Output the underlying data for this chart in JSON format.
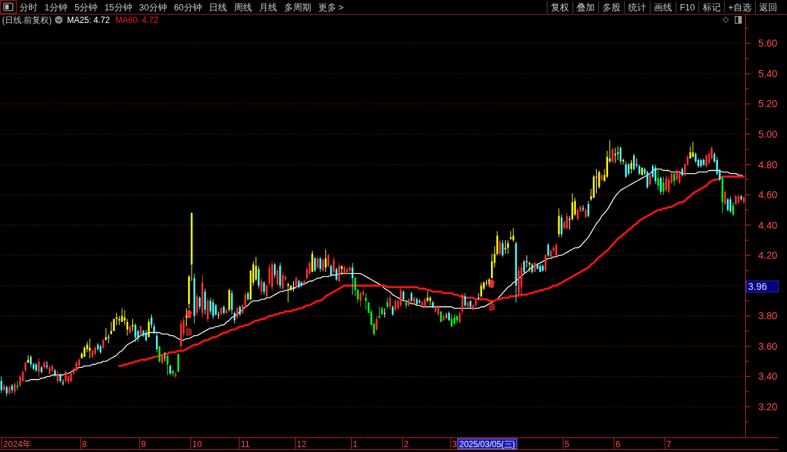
{
  "chart_data": {
    "type": "candlestick",
    "title": "(日线.前复权)",
    "legend": "top left",
    "grid": "y",
    "ylim": [
      3.0,
      5.79
    ],
    "yticks": [
      {
        "value": 3.1,
        "label": null
      },
      {
        "value": 3.2,
        "label": "3.20"
      },
      {
        "value": 3.3,
        "label": null
      },
      {
        "value": 3.4,
        "label": "3.40"
      },
      {
        "value": 3.5,
        "label": null
      },
      {
        "value": 3.6,
        "label": "3.60"
      },
      {
        "value": 3.7,
        "label": null
      },
      {
        "value": 3.8,
        "label": "3.80"
      },
      {
        "value": 3.9,
        "label": null
      },
      {
        "value": 4.0,
        "label": null
      },
      {
        "value": 4.1,
        "label": null
      },
      {
        "value": 4.2,
        "label": "4.20"
      },
      {
        "value": 4.3,
        "label": null
      },
      {
        "value": 4.4,
        "label": "4.40"
      },
      {
        "value": 4.5,
        "label": null
      },
      {
        "value": 4.6,
        "label": "4.60"
      },
      {
        "value": 4.7,
        "label": null
      },
      {
        "value": 4.8,
        "label": "4.80"
      },
      {
        "value": 4.9,
        "label": null
      },
      {
        "value": 5.0,
        "label": "5.00"
      },
      {
        "value": 5.1,
        "label": null
      },
      {
        "value": 5.2,
        "label": "5.20"
      },
      {
        "value": 5.3,
        "label": null
      },
      {
        "value": 5.4,
        "label": "5.40"
      },
      {
        "value": 5.5,
        "label": null
      },
      {
        "value": 5.6,
        "label": "5.60"
      },
      {
        "value": 5.7,
        "label": null
      }
    ],
    "categories": [
      null,
      null,
      null,
      null,
      null,
      null,
      "2024年",
      null,
      null,
      null,
      null,
      null,
      null,
      null,
      null,
      null,
      null,
      null,
      null,
      null,
      null,
      null,
      null,
      null,
      null,
      null,
      null,
      null,
      null,
      null,
      null,
      "8",
      null,
      null,
      null,
      null,
      null,
      null,
      null,
      null,
      null,
      null,
      null,
      null,
      null,
      null,
      null,
      null,
      null,
      null,
      null,
      null,
      null,
      "9",
      null,
      null,
      null,
      null,
      null,
      null,
      null,
      null,
      null,
      null,
      null,
      null,
      null,
      null,
      null,
      null,
      null,
      null,
      null,
      "10",
      null,
      null,
      null,
      null,
      null,
      null,
      null,
      null,
      null,
      null,
      null,
      null,
      null,
      null,
      null,
      null,
      null,
      "11",
      null,
      null,
      null,
      null,
      null,
      null,
      null,
      null,
      null,
      null,
      null,
      null,
      null,
      null,
      null,
      null,
      null,
      null,
      null,
      null,
      "12",
      null,
      null,
      null,
      null,
      null,
      null,
      null,
      null,
      null,
      null,
      null,
      null,
      null,
      null,
      null,
      null,
      null,
      null,
      null,
      "1",
      null,
      null,
      null,
      null,
      null,
      null,
      null,
      null,
      null,
      null,
      null,
      null,
      null,
      null,
      null,
      null,
      null,
      null,
      "2",
      null,
      null,
      null,
      null,
      null,
      null,
      null,
      null,
      null,
      null,
      null,
      null,
      null,
      null,
      null,
      null,
      null,
      "3",
      null,
      null,
      null,
      null,
      null,
      null,
      null,
      null,
      null,
      null,
      null,
      null,
      null,
      null,
      null,
      null,
      null,
      null,
      null,
      null,
      null,
      null,
      null,
      null,
      null,
      null,
      null,
      null,
      null,
      null,
      null,
      null,
      null,
      null,
      null,
      null,
      null,
      null,
      null,
      null,
      null,
      "5",
      null,
      null,
      null,
      null,
      null,
      null,
      null,
      null,
      null,
      null,
      null,
      null,
      null,
      null,
      null,
      null,
      null,
      null,
      "6",
      null,
      null,
      null,
      null,
      null,
      null,
      null,
      null,
      null,
      null,
      null,
      null,
      null,
      null,
      null,
      null,
      null,
      null,
      "7",
      null,
      null,
      null,
      null,
      null,
      null,
      null,
      null,
      null,
      null,
      null,
      null,
      null,
      null,
      null,
      null,
      null,
      null,
      null,
      null,
      null,
      null,
      null,
      null,
      null,
      null,
      null,
      null
    ],
    "ohlc": [
      [
        3.37,
        3.4,
        3.29,
        3.31
      ],
      [
        3.31,
        3.35,
        3.3,
        3.34
      ],
      [
        3.33,
        3.34,
        3.27,
        3.29
      ],
      [
        3.29,
        3.34,
        3.28,
        3.33
      ],
      [
        3.34,
        3.35,
        3.29,
        3.31
      ],
      [
        3.3,
        3.36,
        3.28,
        3.35
      ],
      [
        3.34,
        3.37,
        3.31,
        3.33
      ],
      [
        3.34,
        3.41,
        3.33,
        3.4
      ],
      [
        3.37,
        3.44,
        3.36,
        3.43
      ],
      [
        3.44,
        3.5,
        3.43,
        3.49
      ],
      [
        3.49,
        3.54,
        3.49,
        3.51
      ],
      [
        3.53,
        3.54,
        3.46,
        3.48
      ],
      [
        3.48,
        3.49,
        3.44,
        3.45
      ],
      [
        3.48,
        3.49,
        3.43,
        3.44
      ],
      [
        3.43,
        3.52,
        3.4,
        3.5
      ],
      [
        3.46,
        3.47,
        3.42,
        3.43
      ],
      [
        3.46,
        3.5,
        3.45,
        3.49
      ],
      [
        3.47,
        3.5,
        3.45,
        3.47
      ],
      [
        3.42,
        3.47,
        3.41,
        3.46
      ],
      [
        3.44,
        3.48,
        3.43,
        3.47
      ],
      [
        3.44,
        3.45,
        3.4,
        3.41
      ],
      [
        3.37,
        3.44,
        3.35,
        3.42
      ],
      [
        3.41,
        3.42,
        3.36,
        3.37
      ],
      [
        3.36,
        3.38,
        3.34,
        3.36
      ],
      [
        3.37,
        3.44,
        3.36,
        3.43
      ],
      [
        3.36,
        3.41,
        3.35,
        3.4
      ],
      [
        3.37,
        3.43,
        3.36,
        3.42
      ],
      [
        3.42,
        3.46,
        3.41,
        3.45
      ],
      [
        3.44,
        3.5,
        3.43,
        3.49
      ],
      [
        3.47,
        3.52,
        3.46,
        3.51
      ],
      [
        3.52,
        3.56,
        3.52,
        3.55
      ],
      [
        3.53,
        3.6,
        3.53,
        3.59
      ],
      [
        3.58,
        3.63,
        3.56,
        3.61
      ],
      [
        3.57,
        3.65,
        3.52,
        3.59
      ],
      [
        3.53,
        3.58,
        3.52,
        3.57
      ],
      [
        3.55,
        3.6,
        3.54,
        3.59
      ],
      [
        3.61,
        3.62,
        3.57,
        3.58
      ],
      [
        3.6,
        3.61,
        3.55,
        3.56
      ],
      [
        3.59,
        3.65,
        3.58,
        3.64
      ],
      [
        3.64,
        3.72,
        3.64,
        3.66
      ],
      [
        3.66,
        3.68,
        3.62,
        3.66
      ],
      [
        3.68,
        3.76,
        3.68,
        3.7
      ],
      [
        3.7,
        3.78,
        3.7,
        3.78
      ],
      [
        3.78,
        3.82,
        3.74,
        3.79
      ],
      [
        3.77,
        3.8,
        3.74,
        3.78
      ],
      [
        3.76,
        3.85,
        3.76,
        3.8
      ],
      [
        3.77,
        3.84,
        3.74,
        3.79
      ],
      [
        3.71,
        3.78,
        3.67,
        3.76
      ],
      [
        3.69,
        3.74,
        3.68,
        3.73
      ],
      [
        3.73,
        3.78,
        3.7,
        3.74
      ],
      [
        3.74,
        3.75,
        3.63,
        3.66
      ],
      [
        3.7,
        3.71,
        3.63,
        3.65
      ],
      [
        3.68,
        3.74,
        3.67,
        3.73
      ],
      [
        3.7,
        3.71,
        3.66,
        3.67
      ],
      [
        3.69,
        3.71,
        3.63,
        3.64
      ],
      [
        3.66,
        3.78,
        3.66,
        3.76
      ],
      [
        3.79,
        3.81,
        3.72,
        3.74
      ],
      [
        3.73,
        3.75,
        3.68,
        3.69
      ],
      [
        3.67,
        3.69,
        3.56,
        3.58
      ],
      [
        3.6,
        3.6,
        3.49,
        3.5
      ],
      [
        3.49,
        3.55,
        3.48,
        3.54
      ],
      [
        3.53,
        3.56,
        3.5,
        3.53
      ],
      [
        3.54,
        3.54,
        3.41,
        3.48
      ],
      [
        3.47,
        3.48,
        3.41,
        3.42
      ],
      [
        3.44,
        3.44,
        3.4,
        3.42
      ],
      [
        3.4,
        3.43,
        3.39,
        3.42
      ],
      [
        3.43,
        3.55,
        3.43,
        3.55
      ],
      [
        3.6,
        3.77,
        3.58,
        3.75
      ],
      [
        3.68,
        3.79,
        3.66,
        3.77
      ],
      [
        3.79,
        3.85,
        3.73,
        3.8
      ],
      [
        3.88,
        4.07,
        3.85,
        4.06
      ],
      [
        4.48,
        4.48,
        4.03,
        4.14
      ],
      [
        4.05,
        4.08,
        3.75,
        3.8
      ],
      [
        3.82,
        3.95,
        3.8,
        3.93
      ],
      [
        3.92,
        3.93,
        3.84,
        3.86
      ],
      [
        3.82,
        4.07,
        3.79,
        4.02
      ],
      [
        3.96,
        3.98,
        3.81,
        3.84
      ],
      [
        3.78,
        3.92,
        3.76,
        3.9
      ],
      [
        3.9,
        3.92,
        3.81,
        3.83
      ],
      [
        3.89,
        3.91,
        3.78,
        3.8
      ],
      [
        3.87,
        3.88,
        3.8,
        3.81
      ],
      [
        3.81,
        3.83,
        3.78,
        3.81
      ],
      [
        3.81,
        3.86,
        3.8,
        3.85
      ],
      [
        3.86,
        3.87,
        3.81,
        3.82
      ],
      [
        3.82,
        3.85,
        3.81,
        3.84
      ],
      [
        3.84,
        3.98,
        3.83,
        3.97
      ],
      [
        3.95,
        3.97,
        3.81,
        3.84
      ],
      [
        3.82,
        3.83,
        3.75,
        3.77
      ],
      [
        3.79,
        3.86,
        3.78,
        3.85
      ],
      [
        3.86,
        3.87,
        3.8,
        3.81
      ],
      [
        3.82,
        3.88,
        3.81,
        3.87
      ],
      [
        3.87,
        3.96,
        3.86,
        3.94
      ],
      [
        3.95,
        3.96,
        3.9,
        3.91
      ],
      [
        3.91,
        4.1,
        3.9,
        4.1
      ],
      [
        4.02,
        4.16,
        4.0,
        4.14
      ],
      [
        4.04,
        4.19,
        4.03,
        4.13
      ],
      [
        4.11,
        4.13,
        3.98,
        4.0
      ],
      [
        3.96,
        4.05,
        3.94,
        4.03
      ],
      [
        4.02,
        4.03,
        3.94,
        3.96
      ],
      [
        3.93,
        4.01,
        3.92,
        4.0
      ],
      [
        4.01,
        4.14,
        4.0,
        4.12
      ],
      [
        3.99,
        4.16,
        3.97,
        4.14
      ],
      [
        4.14,
        4.15,
        4.05,
        4.07
      ],
      [
        4.01,
        4.12,
        4.0,
        4.1
      ],
      [
        4.13,
        4.15,
        3.98,
        4.0
      ],
      [
        3.98,
        4.09,
        3.96,
        4.07
      ],
      [
        4.04,
        4.07,
        4.03,
        4.06
      ],
      [
        4.0,
        4.02,
        3.89,
        4.01
      ],
      [
        3.97,
        4.0,
        3.97,
        4.0
      ],
      [
        3.99,
        4.03,
        3.96,
        3.99
      ],
      [
        3.99,
        4.06,
        3.98,
        4.05
      ],
      [
        4.03,
        4.04,
        3.98,
        3.99
      ],
      [
        4.02,
        4.03,
        3.99,
        4.0
      ],
      [
        4.01,
        4.04,
        4.0,
        4.03
      ],
      [
        4.05,
        4.12,
        4.04,
        4.11
      ],
      [
        4.08,
        4.16,
        4.07,
        4.15
      ],
      [
        4.09,
        4.23,
        4.09,
        4.21
      ],
      [
        4.18,
        4.19,
        4.09,
        4.1
      ],
      [
        4.12,
        4.19,
        4.11,
        4.18
      ],
      [
        4.18,
        4.19,
        4.09,
        4.11
      ],
      [
        4.1,
        4.18,
        4.09,
        4.17
      ],
      [
        4.12,
        4.24,
        4.09,
        4.18
      ],
      [
        4.13,
        4.21,
        4.12,
        4.2
      ],
      [
        4.13,
        4.14,
        4.06,
        4.07
      ],
      [
        4.09,
        4.19,
        4.08,
        4.17
      ],
      [
        4.11,
        4.12,
        4.03,
        4.04
      ],
      [
        4.03,
        4.15,
        4.02,
        4.13
      ],
      [
        4.11,
        4.13,
        4.07,
        4.13
      ],
      [
        4.08,
        4.13,
        4.07,
        4.12
      ],
      [
        4.09,
        4.12,
        4.08,
        4.11
      ],
      [
        4.1,
        4.13,
        4.09,
        4.12
      ],
      [
        4.12,
        4.15,
        3.94,
        4.05
      ],
      [
        4.05,
        4.06,
        3.93,
        3.97
      ],
      [
        3.97,
        3.98,
        3.89,
        3.91
      ],
      [
        3.9,
        3.96,
        3.86,
        3.95
      ],
      [
        3.94,
        3.97,
        3.93,
        3.96
      ],
      [
        3.92,
        3.95,
        3.84,
        3.9
      ],
      [
        3.89,
        3.89,
        3.82,
        3.82
      ],
      [
        3.83,
        3.84,
        3.74,
        3.74
      ],
      [
        3.75,
        3.75,
        3.67,
        3.68
      ],
      [
        3.71,
        3.8,
        3.7,
        3.78
      ],
      [
        3.8,
        3.86,
        3.78,
        3.79
      ],
      [
        3.81,
        3.86,
        3.81,
        3.85
      ],
      [
        3.82,
        3.85,
        3.79,
        3.82
      ],
      [
        3.86,
        3.92,
        3.85,
        3.89
      ],
      [
        3.86,
        3.94,
        3.84,
        3.92
      ],
      [
        3.86,
        3.87,
        3.8,
        3.81
      ],
      [
        3.84,
        3.91,
        3.83,
        3.9
      ],
      [
        3.85,
        3.91,
        3.84,
        3.9
      ],
      [
        3.87,
        3.99,
        3.86,
        3.97
      ],
      [
        3.96,
        3.97,
        3.9,
        3.91
      ],
      [
        3.89,
        3.9,
        3.85,
        3.87
      ],
      [
        3.87,
        3.92,
        3.86,
        3.91
      ],
      [
        3.95,
        3.96,
        3.89,
        3.9
      ],
      [
        3.89,
        3.93,
        3.88,
        3.92
      ],
      [
        3.91,
        3.92,
        3.87,
        3.88
      ],
      [
        3.9,
        3.91,
        3.88,
        3.89
      ],
      [
        3.87,
        3.9,
        3.86,
        3.89
      ],
      [
        3.86,
        3.92,
        3.85,
        3.91
      ],
      [
        3.9,
        3.96,
        3.89,
        3.92
      ],
      [
        3.9,
        3.93,
        3.87,
        3.92
      ],
      [
        3.89,
        3.9,
        3.85,
        3.86
      ],
      [
        3.83,
        3.87,
        3.82,
        3.86
      ],
      [
        3.81,
        3.87,
        3.8,
        3.86
      ],
      [
        3.83,
        3.83,
        3.76,
        3.76
      ],
      [
        3.77,
        3.81,
        3.77,
        3.8
      ],
      [
        3.8,
        3.82,
        3.78,
        3.8
      ],
      [
        3.82,
        3.83,
        3.77,
        3.77
      ],
      [
        3.78,
        3.81,
        3.73,
        3.73
      ],
      [
        3.75,
        3.81,
        3.74,
        3.79
      ],
      [
        3.8,
        3.8,
        3.75,
        3.77
      ],
      [
        3.76,
        3.83,
        3.75,
        3.82
      ],
      [
        3.83,
        3.95,
        3.81,
        3.94
      ],
      [
        3.93,
        3.95,
        3.86,
        3.87
      ],
      [
        3.86,
        3.9,
        3.85,
        3.89
      ],
      [
        3.9,
        3.9,
        3.85,
        3.86
      ],
      [
        3.84,
        3.88,
        3.84,
        3.87
      ],
      [
        3.87,
        3.91,
        3.86,
        3.9
      ],
      [
        3.92,
        3.95,
        3.91,
        3.92
      ],
      [
        3.93,
        4.02,
        3.92,
        4.0
      ],
      [
        3.98,
        4.03,
        3.97,
        4.02
      ],
      [
        4.02,
        4.04,
        4.0,
        4.02
      ],
      [
        4.01,
        4.05,
        3.99,
        4.04
      ],
      [
        4.05,
        4.21,
        4.05,
        4.16
      ],
      [
        4.15,
        4.26,
        4.12,
        4.21
      ],
      [
        4.21,
        4.36,
        4.2,
        4.33
      ],
      [
        4.21,
        4.3,
        4.2,
        4.29
      ],
      [
        4.28,
        4.3,
        4.19,
        4.2
      ],
      [
        4.24,
        4.3,
        4.21,
        4.25
      ],
      [
        4.25,
        4.3,
        4.21,
        4.28
      ],
      [
        4.31,
        4.36,
        4.3,
        4.32
      ],
      [
        4.3,
        4.38,
        4.29,
        4.33
      ],
      [
        4.28,
        4.29,
        3.89,
        4.0
      ],
      [
        3.95,
        4.13,
        3.92,
        4.1
      ],
      [
        3.99,
        4.15,
        3.93,
        4.12
      ],
      [
        4.16,
        4.17,
        4.08,
        4.09
      ],
      [
        4.16,
        4.2,
        4.12,
        4.16
      ],
      [
        4.14,
        4.16,
        4.09,
        4.15
      ],
      [
        4.14,
        4.15,
        4.08,
        4.09
      ],
      [
        4.09,
        4.16,
        4.09,
        4.15
      ],
      [
        4.14,
        4.15,
        4.11,
        4.11
      ],
      [
        4.13,
        4.14,
        4.09,
        4.09
      ],
      [
        4.13,
        4.14,
        4.09,
        4.1
      ],
      [
        4.1,
        4.21,
        4.09,
        4.2
      ],
      [
        4.27,
        4.28,
        4.19,
        4.2
      ],
      [
        4.19,
        4.24,
        4.18,
        4.23
      ],
      [
        4.23,
        4.26,
        4.22,
        4.25
      ],
      [
        4.2,
        4.28,
        4.19,
        4.27
      ],
      [
        4.34,
        4.51,
        4.32,
        4.46
      ],
      [
        4.45,
        4.47,
        4.32,
        4.34
      ],
      [
        4.38,
        4.43,
        4.37,
        4.42
      ],
      [
        4.38,
        4.48,
        4.37,
        4.46
      ],
      [
        4.44,
        4.46,
        4.37,
        4.44
      ],
      [
        4.44,
        4.61,
        4.43,
        4.55
      ],
      [
        4.47,
        4.58,
        4.46,
        4.56
      ],
      [
        4.44,
        4.51,
        4.43,
        4.5
      ],
      [
        4.49,
        4.53,
        4.48,
        4.52
      ],
      [
        4.51,
        4.53,
        4.49,
        4.51
      ],
      [
        4.45,
        4.51,
        4.45,
        4.5
      ],
      [
        4.54,
        4.56,
        4.45,
        4.46
      ],
      [
        4.57,
        4.64,
        4.56,
        4.59
      ],
      [
        4.58,
        4.73,
        4.58,
        4.72
      ],
      [
        4.72,
        4.77,
        4.61,
        4.72
      ],
      [
        4.65,
        4.76,
        4.64,
        4.75
      ],
      [
        4.7,
        4.74,
        4.69,
        4.73
      ],
      [
        4.69,
        4.77,
        4.69,
        4.73
      ],
      [
        4.72,
        4.89,
        4.71,
        4.85
      ],
      [
        4.82,
        4.96,
        4.81,
        4.84
      ],
      [
        4.82,
        4.91,
        4.81,
        4.9
      ],
      [
        4.86,
        4.91,
        4.81,
        4.87
      ],
      [
        4.87,
        4.92,
        4.83,
        4.88
      ],
      [
        4.91,
        4.92,
        4.8,
        4.82
      ],
      [
        4.82,
        4.84,
        4.8,
        4.83
      ],
      [
        4.8,
        4.82,
        4.71,
        4.72
      ],
      [
        4.8,
        4.81,
        4.73,
        4.74
      ],
      [
        4.77,
        4.83,
        4.74,
        4.81
      ],
      [
        4.86,
        4.87,
        4.76,
        4.77
      ],
      [
        4.8,
        4.84,
        4.78,
        4.8
      ],
      [
        4.79,
        4.8,
        4.73,
        4.74
      ],
      [
        4.73,
        4.78,
        4.73,
        4.78
      ],
      [
        4.77,
        4.78,
        4.73,
        4.74
      ],
      [
        4.75,
        4.76,
        4.64,
        4.65
      ],
      [
        4.67,
        4.75,
        4.66,
        4.73
      ],
      [
        4.79,
        4.8,
        4.71,
        4.72
      ],
      [
        4.78,
        4.8,
        4.67,
        4.69
      ],
      [
        4.71,
        4.77,
        4.63,
        4.66
      ],
      [
        4.71,
        4.72,
        4.6,
        4.62
      ],
      [
        4.68,
        4.72,
        4.6,
        4.62
      ],
      [
        4.63,
        4.73,
        4.62,
        4.71
      ],
      [
        4.62,
        4.72,
        4.61,
        4.7
      ],
      [
        4.68,
        4.75,
        4.67,
        4.74
      ],
      [
        4.74,
        4.74,
        4.66,
        4.69
      ],
      [
        4.7,
        4.77,
        4.69,
        4.76
      ],
      [
        4.68,
        4.76,
        4.67,
        4.74
      ],
      [
        4.77,
        4.78,
        4.72,
        4.73
      ],
      [
        4.73,
        4.81,
        4.72,
        4.8
      ],
      [
        4.8,
        4.86,
        4.79,
        4.85
      ],
      [
        4.84,
        4.92,
        4.84,
        4.88
      ],
      [
        4.85,
        4.95,
        4.85,
        4.88
      ],
      [
        4.87,
        4.88,
        4.81,
        4.82
      ],
      [
        4.83,
        4.84,
        4.78,
        4.79
      ],
      [
        4.83,
        4.84,
        4.78,
        4.79
      ],
      [
        4.83,
        4.84,
        4.79,
        4.8
      ],
      [
        4.79,
        4.87,
        4.78,
        4.86
      ],
      [
        4.81,
        4.89,
        4.8,
        4.87
      ],
      [
        4.84,
        4.92,
        4.83,
        4.91
      ],
      [
        4.87,
        4.88,
        4.81,
        4.82
      ],
      [
        4.83,
        4.85,
        4.73,
        4.74
      ],
      [
        4.76,
        4.77,
        4.69,
        4.7
      ],
      [
        4.71,
        4.72,
        4.48,
        4.55
      ],
      [
        4.54,
        4.63,
        4.53,
        4.62
      ],
      [
        4.57,
        4.58,
        4.49,
        4.5
      ],
      [
        4.57,
        4.59,
        4.48,
        4.49
      ],
      [
        4.53,
        4.55,
        4.46,
        4.47
      ],
      [
        4.54,
        4.6,
        4.53,
        4.59
      ],
      [
        4.55,
        4.6,
        4.54,
        4.59
      ],
      [
        4.59,
        4.6,
        4.56,
        4.57
      ],
      [
        4.55,
        4.59,
        4.54,
        4.58
      ]
    ],
    "colors": [
      "#54fcfc",
      "#ff3232",
      "#54fcfc",
      "#ff3232",
      "#54fcfc",
      "#ff3232",
      "#00ff00",
      "#ff3232",
      "#ff3232",
      "#ff3232",
      "#ffff00",
      "#54fcfc",
      "#54fcfc",
      "#54fcfc",
      "#ff3232",
      "#54fcfc",
      "#ff3232",
      "#ffffff",
      "#ff3232",
      "#ff3232",
      "#54fcfc",
      "#ff3232",
      "#54fcfc",
      "#ffffff",
      "#ff3232",
      "#ff3232",
      "#ff3232",
      "#ff3232",
      "#ff3232",
      "#ff3232",
      "#ffff00",
      "#ffff00",
      "#ffff00",
      "#ffff00",
      "#ff3232",
      "#ff3232",
      "#54fcfc",
      "#54fcfc",
      "#ff3232",
      "#ffff00",
      "#ffffff",
      "#ffff00",
      "#ffff00",
      "#ffff00",
      "#ffff00",
      "#ffff00",
      "#ffff00",
      "#ffff00",
      "#ff3232",
      "#ffff00",
      "#54fcfc",
      "#54fcfc",
      "#ff3232",
      "#54fcfc",
      "#54fcfc",
      "#ffff00",
      "#54fcfc",
      "#54fcfc",
      "#54fcfc",
      "#00ff00",
      "#ff3232",
      "#ffffff",
      "#00ff00",
      "#54fcfc",
      "#00ff00",
      "#ff3232",
      "#00ff00",
      "#ff3232",
      "#ff3232",
      "#ffff00",
      "#ffff00",
      "#ffff00",
      "#54fcfc",
      "#ff3232",
      "#54fcfc",
      "#ff3232",
      "#54fcfc",
      "#ff3232",
      "#54fcfc",
      "#54fcfc",
      "#54fcfc",
      "#ffffff",
      "#ff3232",
      "#54fcfc",
      "#ff3232",
      "#ffff00",
      "#54fcfc",
      "#54fcfc",
      "#ff3232",
      "#54fcfc",
      "#ff3232",
      "#ff3232",
      "#54fcfc",
      "#ffff00",
      "#ffff00",
      "#ffff00",
      "#54fcfc",
      "#ff3232",
      "#54fcfc",
      "#ff3232",
      "#ff3232",
      "#ff3232",
      "#54fcfc",
      "#ff3232",
      "#54fcfc",
      "#ff3232",
      "#ff3232",
      "#ffff00",
      "#ffff00",
      "#ffffff",
      "#ff3232",
      "#54fcfc",
      "#54fcfc",
      "#ff3232",
      "#ff3232",
      "#ff3232",
      "#ffff00",
      "#54fcfc",
      "#ff3232",
      "#54fcfc",
      "#ff3232",
      "#ffff00",
      "#ff3232",
      "#54fcfc",
      "#ff3232",
      "#54fcfc",
      "#ff3232",
      "#ffff00",
      "#ff3232",
      "#ff3232",
      "#ff3232",
      "#54fcfc",
      "#00ff00",
      "#00ff00",
      "#ff3232",
      "#ff3232",
      "#00ff00",
      "#00ff00",
      "#00ff00",
      "#00ff00",
      "#ff3232",
      "#00ff00",
      "#00ff00",
      "#ffffff",
      "#00ff00",
      "#ff3232",
      "#54fcfc",
      "#ff3232",
      "#ff3232",
      "#ff3232",
      "#54fcfc",
      "#00ff00",
      "#ff3232",
      "#54fcfc",
      "#ff3232",
      "#54fcfc",
      "#54fcfc",
      "#ff3232",
      "#ff3232",
      "#ffff00",
      "#ffff00",
      "#54fcfc",
      "#ff3232",
      "#ff3232",
      "#00ff00",
      "#ff3232",
      "#ffffff",
      "#54fcfc",
      "#00ff00",
      "#00ff00",
      "#00ff00",
      "#ff3232",
      "#ff3232",
      "#54fcfc",
      "#ff3232",
      "#54fcfc",
      "#ff3232",
      "#ff3232",
      "#ffffff",
      "#ffff00",
      "#ffff00",
      "#ffffff",
      "#ffff00",
      "#ffff00",
      "#ffff00",
      "#ffff00",
      "#ff3232",
      "#54fcfc",
      "#ffff00",
      "#ffff00",
      "#ffff00",
      "#ffff00",
      "#54fcfc",
      "#ff3232",
      "#ff3232",
      "#54fcfc",
      "#ffffff",
      "#ffff00",
      "#54fcfc",
      "#ff3232",
      "#54fcfc",
      "#54fcfc",
      "#54fcfc",
      "#ff3232",
      "#54fcfc",
      "#ff3232",
      "#ff3232",
      "#ff3232",
      "#ffff00",
      "#54fcfc",
      "#ff3232",
      "#ff3232",
      "#ffffff",
      "#ffff00",
      "#ffff00",
      "#ff3232",
      "#ff3232",
      "#ffffff",
      "#ff3232",
      "#54fcfc",
      "#ffff00",
      "#ffff00",
      "#ffffff",
      "#ffff00",
      "#ff3232",
      "#ffff00",
      "#ffff00",
      "#ffff00",
      "#ff3232",
      "#ffff00",
      "#ffff00",
      "#54fcfc",
      "#ffff00",
      "#54fcfc",
      "#54fcfc",
      "#ffff00",
      "#54fcfc",
      "#ffffff",
      "#54fcfc",
      "#ffff00",
      "#54fcfc",
      "#54fcfc",
      "#ff3232",
      "#54fcfc",
      "#54fcfc",
      "#00ff00",
      "#54fcfc",
      "#00ff00",
      "#ff3232",
      "#ff3232",
      "#ff3232",
      "#00ff00",
      "#ff3232",
      "#ff3232",
      "#54fcfc",
      "#ff3232",
      "#ff3232",
      "#ffff00",
      "#ffff00",
      "#54fcfc",
      "#54fcfc",
      "#54fcfc",
      "#54fcfc",
      "#ff3232",
      "#ff3232",
      "#ff3232",
      "#54fcfc",
      "#54fcfc",
      "#54fcfc",
      "#00ff00",
      "#ff3232",
      "#54fcfc",
      "#54fcfc",
      "#00ff00",
      "#ff3232",
      "#ff3232",
      "#54fcfc",
      "#ff3232"
    ],
    "series": [
      {
        "name": "MA25: 4.72",
        "type": "line",
        "color": "#ffffff",
        "values": [
          null,
          null,
          null,
          null,
          null,
          null,
          null,
          null,
          null,
          3.37,
          3.37,
          3.38,
          3.38,
          3.38,
          3.38,
          3.39,
          3.39,
          3.4,
          3.4,
          3.41,
          3.41,
          3.41,
          3.41,
          3.41,
          3.42,
          3.42,
          3.43,
          3.44,
          3.45,
          3.46,
          3.46,
          3.47,
          3.47,
          3.47,
          3.48,
          3.48,
          3.49,
          3.49,
          3.5,
          3.5,
          3.51,
          3.52,
          3.53,
          3.54,
          3.56,
          3.57,
          3.59,
          3.61,
          3.62,
          3.63,
          3.64,
          3.66,
          3.67,
          3.68,
          3.68,
          3.69,
          3.69,
          3.69,
          3.69,
          3.69,
          3.68,
          3.68,
          3.68,
          3.67,
          3.67,
          3.66,
          3.65,
          3.64,
          3.64,
          3.65,
          3.65,
          3.66,
          3.67,
          3.67,
          3.68,
          3.69,
          3.7,
          3.71,
          3.72,
          3.72,
          3.73,
          3.73,
          3.74,
          3.74,
          3.76,
          3.77,
          3.79,
          3.8,
          3.81,
          3.83,
          3.84,
          3.86,
          3.87,
          3.89,
          3.9,
          3.9,
          3.9,
          3.91,
          3.91,
          3.92,
          3.92,
          3.93,
          3.94,
          3.95,
          3.96,
          3.96,
          3.97,
          3.97,
          3.98,
          3.98,
          3.99,
          4.0,
          4.01,
          4.01,
          4.02,
          4.03,
          4.03,
          4.04,
          4.05,
          4.05,
          4.06,
          4.06,
          4.06,
          4.07,
          4.07,
          4.07,
          4.08,
          4.08,
          4.08,
          4.08,
          4.08,
          4.08,
          4.08,
          4.08,
          4.08,
          4.07,
          4.06,
          4.05,
          4.04,
          4.03,
          4.02,
          4.01,
          4.0,
          3.98,
          3.97,
          3.96,
          3.94,
          3.93,
          3.92,
          3.91,
          3.9,
          3.9,
          3.89,
          3.88,
          3.88,
          3.87,
          3.87,
          3.86,
          3.86,
          3.86,
          3.86,
          3.86,
          3.86,
          3.86,
          3.86,
          3.86,
          3.86,
          3.86,
          3.86,
          3.85,
          3.85,
          3.85,
          3.85,
          3.85,
          3.85,
          3.85,
          3.85,
          3.85,
          3.85,
          3.86,
          3.86,
          3.87,
          3.88,
          3.89,
          3.9,
          3.91,
          3.93,
          3.95,
          3.97,
          3.99,
          4.0,
          4.02,
          4.03,
          4.05,
          4.06,
          4.08,
          4.09,
          4.11,
          4.12,
          4.13,
          4.14,
          4.15,
          4.16,
          4.17,
          4.18,
          4.18,
          4.19,
          4.19,
          4.2,
          4.2,
          4.21,
          4.22,
          4.23,
          4.24,
          4.25,
          4.25,
          4.26,
          4.28,
          4.3,
          4.32,
          4.35,
          4.38,
          4.41,
          4.43,
          4.46,
          4.48,
          4.5,
          4.53,
          4.56,
          4.59,
          4.61,
          4.63,
          4.64,
          4.65,
          4.66,
          4.67,
          4.68,
          4.69,
          4.7,
          4.71,
          4.72,
          4.73,
          4.74,
          4.76,
          4.77,
          4.77,
          4.77,
          4.76,
          4.76,
          4.76,
          4.75,
          4.75,
          4.75,
          4.75,
          4.74,
          4.74,
          4.74,
          4.74,
          4.74,
          4.74,
          4.75,
          4.75,
          4.75,
          4.75,
          4.76,
          4.76,
          4.76,
          4.76,
          4.76,
          4.75,
          4.75,
          4.75,
          4.74,
          4.74,
          4.74,
          4.73,
          4.73,
          4.72
        ]
      },
      {
        "name": "MA60: 4.72",
        "type": "line",
        "color": "#ff1414",
        "values": [
          null,
          null,
          null,
          null,
          null,
          null,
          null,
          null,
          null,
          null,
          null,
          null,
          null,
          null,
          null,
          null,
          null,
          null,
          null,
          null,
          null,
          null,
          null,
          null,
          null,
          null,
          null,
          null,
          null,
          null,
          null,
          null,
          null,
          null,
          null,
          null,
          null,
          null,
          null,
          null,
          null,
          null,
          null,
          null,
          3.47,
          3.47,
          3.48,
          3.48,
          3.49,
          3.49,
          3.5,
          3.5,
          3.51,
          3.51,
          3.51,
          3.52,
          3.52,
          3.53,
          3.53,
          3.54,
          3.54,
          3.55,
          3.55,
          3.56,
          3.56,
          3.56,
          3.57,
          3.57,
          3.57,
          3.58,
          3.59,
          3.6,
          3.61,
          3.61,
          3.62,
          3.63,
          3.64,
          3.64,
          3.65,
          3.66,
          3.66,
          3.67,
          3.68,
          3.69,
          3.69,
          3.7,
          3.71,
          3.71,
          3.72,
          3.73,
          3.73,
          3.74,
          3.74,
          3.75,
          3.76,
          3.77,
          3.77,
          3.78,
          3.78,
          3.79,
          3.8,
          3.8,
          3.81,
          3.81,
          3.82,
          3.82,
          3.83,
          3.83,
          3.83,
          3.84,
          3.84,
          3.85,
          3.85,
          3.86,
          3.87,
          3.87,
          3.88,
          3.89,
          3.9,
          3.9,
          3.91,
          3.93,
          3.94,
          3.95,
          3.96,
          3.97,
          3.98,
          3.99,
          4.0,
          4.0,
          4.0,
          4.0,
          4.0,
          4.0,
          4.0,
          4.0,
          4.0,
          4.0,
          4.0,
          4.0,
          4.0,
          4.0,
          4.0,
          4.0,
          3.99,
          3.99,
          3.99,
          3.99,
          3.99,
          3.99,
          3.99,
          3.99,
          3.99,
          3.99,
          3.99,
          3.99,
          3.98,
          3.98,
          3.98,
          3.97,
          3.97,
          3.96,
          3.96,
          3.96,
          3.96,
          3.95,
          3.95,
          3.95,
          3.95,
          3.94,
          3.94,
          3.93,
          3.93,
          3.92,
          3.92,
          3.92,
          3.92,
          3.91,
          3.91,
          3.91,
          3.91,
          3.91,
          3.9,
          3.9,
          3.9,
          3.91,
          3.91,
          3.92,
          3.92,
          3.92,
          3.93,
          3.93,
          3.93,
          3.94,
          3.94,
          3.94,
          3.94,
          3.95,
          3.95,
          3.96,
          3.96,
          3.97,
          3.97,
          3.98,
          3.98,
          3.99,
          4.0,
          4.0,
          4.01,
          4.02,
          4.03,
          4.04,
          4.05,
          4.06,
          4.07,
          4.08,
          4.09,
          4.1,
          4.11,
          4.12,
          4.14,
          4.15,
          4.17,
          4.19,
          4.2,
          4.22,
          4.23,
          4.25,
          4.27,
          4.29,
          4.31,
          4.32,
          4.34,
          4.35,
          4.37,
          4.38,
          4.4,
          4.41,
          4.43,
          4.44,
          4.45,
          4.46,
          4.47,
          4.48,
          4.49,
          4.5,
          4.5,
          4.51,
          4.51,
          4.52,
          4.52,
          4.53,
          4.54,
          4.55,
          4.55,
          4.56,
          4.58,
          4.59,
          4.61,
          4.62,
          4.63,
          4.64,
          4.65,
          4.66,
          4.68,
          4.69,
          4.7,
          4.7,
          4.71,
          4.72,
          4.72,
          4.72,
          4.72,
          4.72,
          4.72,
          4.72,
          4.72,
          4.72
        ]
      }
    ],
    "annotations": [
      "分时",
      "1分钟",
      "5分钟",
      "15分钟",
      "30分钟",
      "60分钟",
      "日线",
      "周线",
      "月线",
      "多周期",
      "更多 >",
      "复权",
      "叠加",
      "多股",
      "统计",
      "画线",
      "F10",
      "标记",
      "+自选",
      "返回",
      "2025/03/05(三)",
      "3.96",
      {
        "text": "B",
        "y": 3.85
      },
      {
        "text": "B",
        "y": 4.05
      }
    ]
  }
}
